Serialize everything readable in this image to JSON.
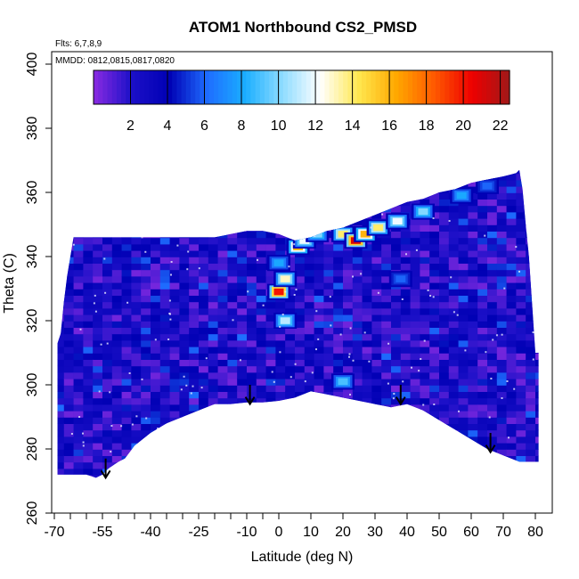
{
  "chart_data": {
    "type": "heatmap",
    "title": "ATOM1 Northbound CS2_PMSD",
    "annotation_flts": "Flts: 6,7,8,9",
    "annotation_mmdd": "MMDD: 0812,0815,0817,0820",
    "xlabel": "Latitude (deg N)",
    "ylabel": "Theta (C)",
    "x_ticks_labeled": [
      -70,
      -55,
      -40,
      -25,
      -10,
      0,
      10,
      20,
      30,
      40,
      50,
      60,
      70,
      80
    ],
    "x_tick_labels": [
      "-70",
      "-55",
      "-40",
      "-25",
      "-10",
      "0",
      "10",
      "20",
      "30",
      "40",
      "50",
      "60",
      "70",
      "80"
    ],
    "x_ticks_minor": [
      -65,
      -60,
      -50,
      -45,
      -35,
      -30,
      -20,
      -15,
      -5
    ],
    "y_ticks": [
      260,
      280,
      300,
      320,
      340,
      360,
      380,
      400
    ],
    "y_tick_labels": [
      "260",
      "280",
      "300",
      "320",
      "340",
      "360",
      "380",
      "400"
    ],
    "colorbar": {
      "range": [
        0,
        22.5
      ],
      "ticks": [
        2,
        4,
        6,
        8,
        10,
        12,
        14,
        16,
        18,
        20,
        22
      ],
      "tick_labels": [
        "2",
        "4",
        "6",
        "8",
        "10",
        "12",
        "14",
        "16",
        "18",
        "20",
        "22"
      ],
      "colors": [
        "#8a2be2",
        "#1c10c8",
        "#0000b4",
        "#1e6cff",
        "#1aaeff",
        "#8fdcff",
        "#ffffff",
        "#ffe850",
        "#ffa800",
        "#ff5a00",
        "#ee0000",
        "#a01818"
      ]
    },
    "top_boundary": [
      [
        -69,
        313
      ],
      [
        -68,
        316
      ],
      [
        -67,
        326
      ],
      [
        -66,
        334
      ],
      [
        -64,
        346
      ],
      [
        -60,
        346
      ],
      [
        -50,
        346
      ],
      [
        -40,
        346
      ],
      [
        -35,
        346
      ],
      [
        -30,
        346
      ],
      [
        -20,
        346
      ],
      [
        -15,
        347
      ],
      [
        -10,
        348
      ],
      [
        -5,
        348
      ],
      [
        0,
        347
      ],
      [
        5,
        345
      ],
      [
        10,
        346
      ],
      [
        15,
        348
      ],
      [
        20,
        349
      ],
      [
        25,
        351
      ],
      [
        30,
        353
      ],
      [
        35,
        355
      ],
      [
        40,
        357
      ],
      [
        45,
        358
      ],
      [
        50,
        360
      ],
      [
        55,
        361
      ],
      [
        60,
        363
      ],
      [
        65,
        364
      ],
      [
        70,
        365
      ],
      [
        74,
        366
      ],
      [
        75,
        367
      ],
      [
        76,
        361
      ],
      [
        77,
        350
      ],
      [
        78,
        340
      ],
      [
        79,
        325
      ],
      [
        80,
        310
      ],
      [
        81,
        310
      ]
    ],
    "bottom_boundary": [
      [
        81,
        276
      ],
      [
        78,
        276
      ],
      [
        75,
        276
      ],
      [
        70,
        278
      ],
      [
        65,
        280
      ],
      [
        60,
        283
      ],
      [
        55,
        286
      ],
      [
        50,
        289
      ],
      [
        45,
        292
      ],
      [
        40,
        294
      ],
      [
        35,
        293
      ],
      [
        30,
        294
      ],
      [
        25,
        295
      ],
      [
        20,
        296
      ],
      [
        15,
        297
      ],
      [
        10,
        298
      ],
      [
        5,
        296
      ],
      [
        0,
        295
      ],
      [
        -5,
        294.5
      ],
      [
        -10,
        294.5
      ],
      [
        -15,
        294
      ],
      [
        -20,
        294
      ],
      [
        -25,
        292
      ],
      [
        -30,
        290
      ],
      [
        -35,
        288
      ],
      [
        -40,
        285
      ],
      [
        -45,
        281
      ],
      [
        -48,
        277
      ],
      [
        -50,
        276
      ],
      [
        -53,
        274
      ],
      [
        -55,
        272
      ],
      [
        -57,
        271
      ],
      [
        -60,
        272
      ],
      [
        -65,
        272
      ],
      [
        -69,
        272
      ]
    ],
    "hotspots": [
      {
        "lat": 0,
        "theta": 329,
        "value": 20
      },
      {
        "lat": 2,
        "theta": 333,
        "value": 13
      },
      {
        "lat": 0,
        "theta": 338,
        "value": 8
      },
      {
        "lat": 2,
        "theta": 320,
        "value": 11
      },
      {
        "lat": 6,
        "theta": 343,
        "value": 16
      },
      {
        "lat": 8,
        "theta": 345,
        "value": 12
      },
      {
        "lat": 12,
        "theta": 347,
        "value": 10
      },
      {
        "lat": 20,
        "theta": 347,
        "value": 14
      },
      {
        "lat": 24,
        "theta": 345,
        "value": 21
      },
      {
        "lat": 27,
        "theta": 347,
        "value": 16
      },
      {
        "lat": 31,
        "theta": 349,
        "value": 14
      },
      {
        "lat": 37,
        "theta": 351,
        "value": 12
      },
      {
        "lat": 45,
        "theta": 354,
        "value": 10
      },
      {
        "lat": 57,
        "theta": 359,
        "value": 8
      },
      {
        "lat": 65,
        "theta": 362,
        "value": 6
      },
      {
        "lat": 20,
        "theta": 301,
        "value": 9
      },
      {
        "lat": 38,
        "theta": 333,
        "value": 6
      }
    ],
    "arrows": [
      {
        "lat": -54,
        "theta_top": 277,
        "theta_tip": 271
      },
      {
        "lat": -9,
        "theta_top": 300,
        "theta_tip": 294
      },
      {
        "lat": 38,
        "theta_top": 300,
        "theta_tip": 294
      },
      {
        "lat": 66,
        "theta_top": 285,
        "theta_tip": 279
      }
    ]
  }
}
